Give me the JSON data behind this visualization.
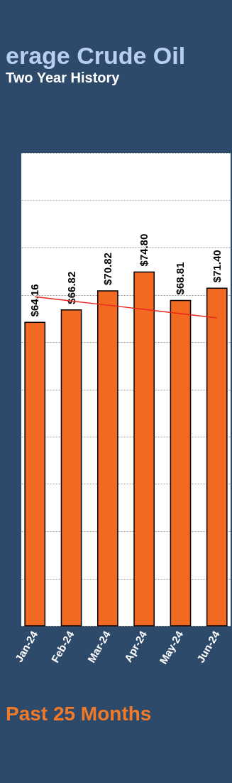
{
  "chart_data": {
    "type": "bar",
    "title": "erage Crude Oil",
    "subtitle": "Two Year History",
    "categories": [
      "Jan-24",
      "Feb-24",
      "Mar-24",
      "Apr-24",
      "May-24",
      "Jun-24"
    ],
    "series": [
      {
        "color": "#f26a21",
        "values": [
          64.16,
          66.82,
          70.82,
          74.8,
          68.81,
          71.4
        ],
        "value_labels": [
          "$64.16",
          "$66.82",
          "$70.82",
          "$74.80",
          "$68.81",
          "$71.40"
        ]
      },
      {
        "type": "line",
        "color": "#e8281e",
        "values": [
          69.6,
          68.7,
          67.8,
          66.9,
          66.0,
          65.1
        ]
      }
    ],
    "ylim": [
      0,
      100
    ],
    "yticks": [
      {
        "value": 0,
        "label": null
      },
      {
        "value": 10,
        "label": null
      },
      {
        "value": 20,
        "label": null
      },
      {
        "value": 30,
        "label": null
      },
      {
        "value": 40,
        "label": null
      },
      {
        "value": 50,
        "label": null
      },
      {
        "value": 60,
        "label": null
      },
      {
        "value": 70,
        "label": null
      },
      {
        "value": 80,
        "label": null
      },
      {
        "value": 90,
        "label": null
      },
      {
        "value": 100,
        "label": null
      }
    ],
    "tick_labels": "x",
    "grid": "y",
    "annotations": [
      "Past 25 Months"
    ]
  }
}
